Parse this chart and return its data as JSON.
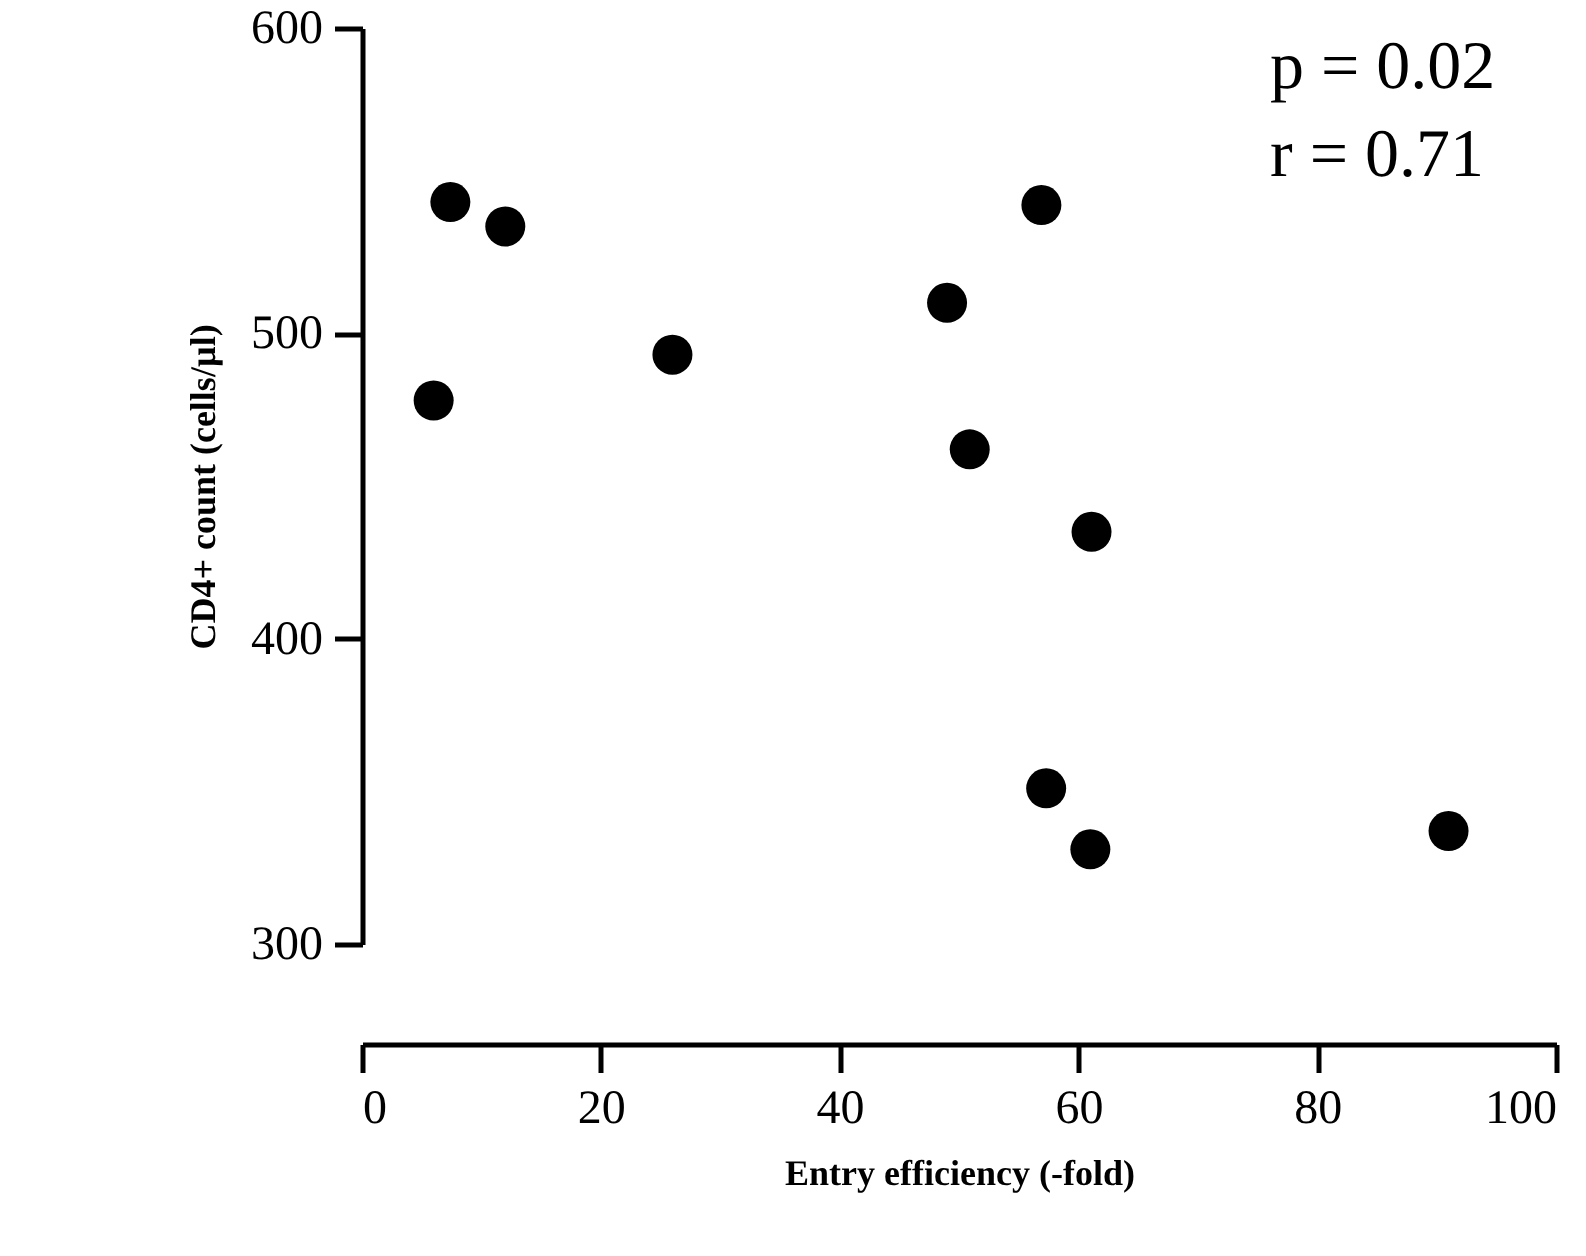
{
  "chart_data": {
    "type": "scatter",
    "xlabel": "Entry efficiency (-fold)",
    "ylabel": "CD4+ count (cells/µl)",
    "x": [
      7.4,
      12.0,
      56.9,
      49.0,
      26.0,
      6.0,
      50.9,
      61.1,
      57.3,
      61.0,
      91.0
    ],
    "series": [
      {
        "color": "#000000",
        "values": [
          543,
          535,
          542,
          510,
          493,
          478,
          462,
          435,
          351,
          331,
          337
        ]
      }
    ],
    "xlim": [
      0,
      100
    ],
    "xticks": [
      0,
      20,
      40,
      60,
      80,
      100
    ],
    "ylim": [
      300,
      600
    ],
    "yticks": [
      300,
      400,
      500,
      600
    ],
    "annotations": [
      "p = 0.02",
      "r = 0.71"
    ],
    "marker": "circle",
    "grid": false
  }
}
